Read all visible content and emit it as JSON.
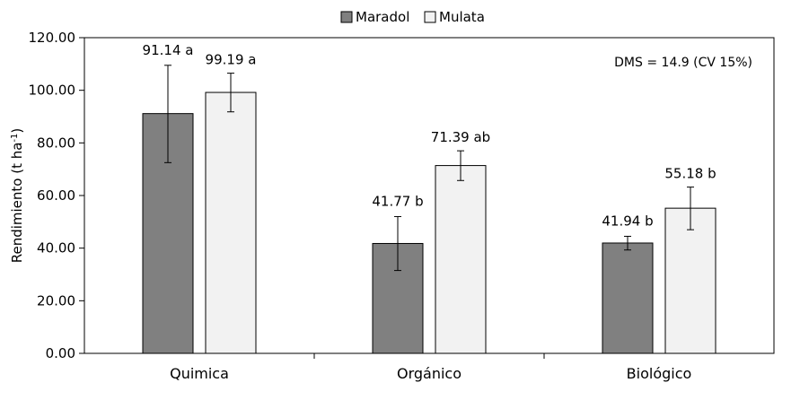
{
  "chart_data": {
    "type": "bar",
    "categories": [
      "Quimica",
      "Orgánico",
      "Biológico"
    ],
    "series": [
      {
        "name": "Maradol",
        "color": "#808080",
        "values": [
          91.14,
          41.77,
          41.94
        ],
        "error_low": [
          72.5,
          31.5,
          39.3
        ],
        "error_high": [
          109.5,
          52.0,
          44.5
        ],
        "labels": [
          "91.14 a",
          "41.77 b",
          "41.94 b"
        ]
      },
      {
        "name": "Mulata",
        "color": "#f2f2f2",
        "values": [
          99.19,
          71.39,
          55.18
        ],
        "error_low": [
          91.8,
          65.7,
          47.0
        ],
        "error_high": [
          106.5,
          77.0,
          63.2
        ],
        "labels": [
          "99.19 a",
          "71.39 ab",
          "55.18 b"
        ]
      }
    ],
    "title": "",
    "xlabel": "",
    "ylabel": "Rendimiento (t ha",
    "ylabel_sup": "-1",
    "ylabel_end": ")",
    "ylim": [
      0,
      120
    ],
    "yticks": [
      "0.00",
      "20.00",
      "40.00",
      "60.00",
      "80.00",
      "100.00",
      "120.00"
    ],
    "ytick_values": [
      0,
      20,
      40,
      60,
      80,
      100,
      120
    ],
    "annotation": "DMS = 14.9 (CV 15%)",
    "legend_position": "top-center",
    "grid": false
  }
}
